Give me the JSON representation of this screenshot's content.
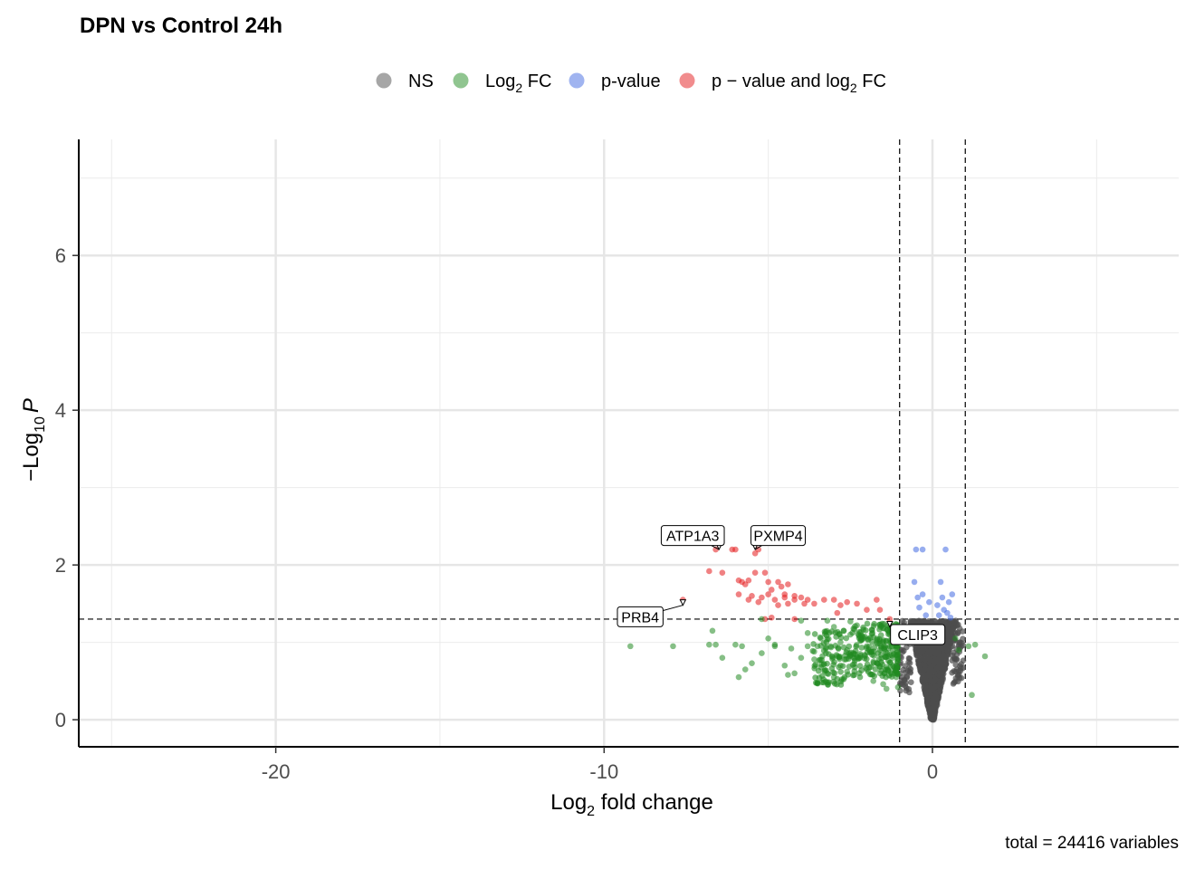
{
  "chart_data": {
    "type": "scatter",
    "title": "DPN vs Control 24h",
    "xlabel": "Log2 fold change",
    "xlabel_main": "Log",
    "xlabel_sub": "2",
    "xlabel_rest": " fold change",
    "ylabel_prefix": "−Log",
    "ylabel_sub": "10",
    "ylabel_italic": "P",
    "caption": "total = 24416 variables",
    "xlim": [
      -26,
      7.5
    ],
    "ylim": [
      -0.35,
      7.5
    ],
    "x_ticks": [
      -20,
      -10,
      0
    ],
    "x_tick_labels": [
      "-20",
      "-10",
      "0"
    ],
    "y_ticks": [
      0,
      2,
      4,
      6
    ],
    "y_tick_labels": [
      "0",
      "2",
      "4",
      "6"
    ],
    "thresholds": {
      "log2fc": [
        -1,
        1
      ],
      "neg_log10_p": 1.3
    },
    "grid": true,
    "legend": {
      "position": "top",
      "items": [
        {
          "key": "NS",
          "main": "NS",
          "sub": "",
          "rest": "",
          "color": "#4d4d4d"
        },
        {
          "key": "log2fc",
          "main": "Log",
          "sub": "2",
          "rest": " FC",
          "color": "#228b22"
        },
        {
          "key": "pvalue",
          "main": "p-value",
          "sub": "",
          "rest": "",
          "color": "#4169e1"
        },
        {
          "key": "both",
          "main": "p − value and log",
          "sub": "2",
          "rest": " FC",
          "color": "#e31a1c"
        }
      ]
    },
    "labels": [
      {
        "text": "ATP1A3",
        "x": -6.5,
        "y": 2.2,
        "lx": -7.3,
        "ly": 2.38
      },
      {
        "text": "PXMP4",
        "x": -5.4,
        "y": 2.2,
        "lx": -4.7,
        "ly": 2.38
      },
      {
        "text": "PRB4",
        "x": -7.6,
        "y": 1.48,
        "lx": -8.9,
        "ly": 1.33
      },
      {
        "text": "CLIP3",
        "x": -1.3,
        "y": 1.2,
        "lx": -0.45,
        "ly": 1.1
      }
    ],
    "series": [
      {
        "name": "p − value and log2 FC",
        "color": "#e31a1c",
        "points": [
          [
            -6.6,
            2.2
          ],
          [
            -6.1,
            2.2
          ],
          [
            -6.0,
            2.2
          ],
          [
            -5.4,
            2.15
          ],
          [
            -5.3,
            2.2
          ],
          [
            -6.8,
            1.92
          ],
          [
            -6.4,
            1.9
          ],
          [
            -5.9,
            1.8
          ],
          [
            -5.8,
            1.78
          ],
          [
            -5.6,
            1.8
          ],
          [
            -5.4,
            1.9
          ],
          [
            -5.1,
            1.9
          ],
          [
            -5.7,
            1.75
          ],
          [
            -5.0,
            1.78
          ],
          [
            -4.7,
            1.78
          ],
          [
            -4.6,
            1.72
          ],
          [
            -4.4,
            1.75
          ],
          [
            -4.9,
            1.68
          ],
          [
            -4.5,
            1.62
          ],
          [
            -4.2,
            1.6
          ],
          [
            -4.0,
            1.58
          ],
          [
            -3.8,
            1.55
          ],
          [
            -5.9,
            1.62
          ],
          [
            -5.5,
            1.6
          ],
          [
            -5.2,
            1.58
          ],
          [
            -5.0,
            1.62
          ],
          [
            -4.8,
            1.55
          ],
          [
            -4.4,
            1.5
          ],
          [
            -4.2,
            1.55
          ],
          [
            -3.9,
            1.5
          ],
          [
            -3.6,
            1.5
          ],
          [
            -3.3,
            1.55
          ],
          [
            -3.0,
            1.55
          ],
          [
            -2.8,
            1.48
          ],
          [
            -2.6,
            1.52
          ],
          [
            -2.3,
            1.5
          ],
          [
            -1.7,
            1.55
          ],
          [
            -2.0,
            1.42
          ],
          [
            -5.6,
            1.55
          ],
          [
            -5.3,
            1.52
          ],
          [
            -4.7,
            1.48
          ],
          [
            -4.5,
            1.58
          ],
          [
            -5.1,
            1.3
          ],
          [
            -4.9,
            1.32
          ],
          [
            -4.2,
            1.3
          ],
          [
            -2.9,
            1.38
          ],
          [
            -1.6,
            1.42
          ],
          [
            -1.3,
            1.3
          ],
          [
            -7.6,
            1.55
          ]
        ]
      },
      {
        "name": "Log2 FC",
        "color": "#228b22",
        "points": [
          [
            -9.2,
            0.95
          ],
          [
            -7.9,
            0.95
          ],
          [
            -6.7,
            1.15
          ],
          [
            -6.8,
            0.97
          ],
          [
            -6.6,
            0.97
          ],
          [
            -6.4,
            0.8
          ],
          [
            -6.0,
            0.97
          ],
          [
            -5.8,
            0.95
          ],
          [
            -5.7,
            0.65
          ],
          [
            -5.9,
            0.55
          ],
          [
            -5.5,
            0.73
          ],
          [
            -5.2,
            0.86
          ],
          [
            -5.0,
            1.05
          ],
          [
            -4.8,
            0.97
          ],
          [
            -4.5,
            0.7
          ],
          [
            -4.4,
            0.58
          ],
          [
            -4.2,
            0.6
          ],
          [
            -4.0,
            0.8
          ],
          [
            -3.8,
            0.95
          ],
          [
            -3.6,
            0.88
          ],
          [
            -3.3,
            0.72
          ],
          [
            -3.2,
            0.6
          ],
          [
            -3.0,
            0.55
          ],
          [
            -2.8,
            0.7
          ],
          [
            -2.6,
            0.62
          ],
          [
            -2.4,
            0.8
          ],
          [
            -2.2,
            1.02
          ],
          [
            -2.0,
            0.95
          ],
          [
            -1.8,
            0.75
          ],
          [
            -1.6,
            0.6
          ],
          [
            -1.5,
            0.46
          ],
          [
            -1.4,
            0.4
          ],
          [
            -4.8,
            0.95
          ],
          [
            -3.8,
            1.12
          ],
          [
            -3.4,
            1.05
          ],
          [
            -3.0,
            1.2
          ],
          [
            -2.7,
            1.15
          ],
          [
            -2.5,
            1.1
          ],
          [
            -2.3,
            1.22
          ],
          [
            -2.1,
            1.05
          ],
          [
            -1.9,
            0.88
          ],
          [
            -1.7,
            1.0
          ],
          [
            -1.5,
            1.18
          ],
          [
            -1.3,
            0.95
          ],
          [
            -1.2,
            0.8
          ],
          [
            -1.1,
            0.55
          ],
          [
            -1.05,
            0.42
          ],
          [
            -5.2,
            1.3
          ],
          [
            -4.0,
            1.28
          ],
          [
            -3.2,
            1.28
          ],
          [
            -2.5,
            1.27
          ],
          [
            -2.8,
            1.0
          ],
          [
            -3.5,
            0.95
          ],
          [
            -4.3,
            0.92
          ],
          [
            -2.0,
            0.65
          ],
          [
            -1.8,
            0.5
          ],
          [
            1.1,
            0.95
          ],
          [
            1.3,
            0.97
          ],
          [
            1.6,
            0.82
          ],
          [
            1.2,
            0.32
          ],
          [
            0.8,
            0.9
          ],
          [
            0.7,
            1.05
          ],
          [
            -2.2,
            0.85
          ],
          [
            -2.6,
            0.9
          ],
          [
            -2.9,
            0.82
          ],
          [
            -3.1,
            0.95
          ],
          [
            -3.6,
            0.78
          ],
          [
            -1.4,
            0.68
          ],
          [
            -1.2,
            1.12
          ],
          [
            -1.6,
            0.9
          ]
        ]
      },
      {
        "name": "p-value",
        "color": "#4169e1",
        "points": [
          [
            -0.5,
            2.2
          ],
          [
            -0.3,
            2.2
          ],
          [
            0.4,
            2.2
          ],
          [
            -0.55,
            1.78
          ],
          [
            0.25,
            1.78
          ],
          [
            -0.45,
            1.58
          ],
          [
            -0.3,
            1.62
          ],
          [
            0.3,
            1.58
          ],
          [
            0.6,
            1.62
          ],
          [
            0.5,
            1.52
          ],
          [
            -0.4,
            1.45
          ],
          [
            0.35,
            1.42
          ],
          [
            0.2,
            1.35
          ],
          [
            -0.2,
            1.35
          ],
          [
            0.55,
            1.32
          ],
          [
            0.45,
            1.38
          ],
          [
            0.15,
            1.48
          ],
          [
            -0.1,
            1.52
          ]
        ]
      },
      {
        "name": "NS",
        "color": "#4d4d4d",
        "points": []
      }
    ]
  }
}
